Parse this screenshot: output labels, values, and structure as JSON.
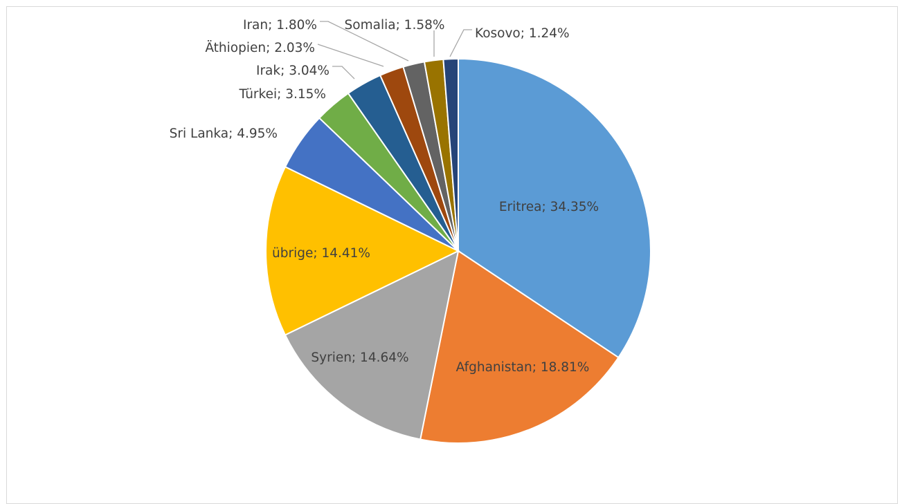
{
  "chart_data": {
    "type": "pie",
    "title": "",
    "slices": [
      {
        "name": "Eritrea",
        "value": 34.35,
        "label": "Eritrea; 34.35%",
        "color": "#5B9BD5"
      },
      {
        "name": "Afghanistan",
        "value": 18.81,
        "label": "Afghanistan; 18.81%",
        "color": "#ED7D31"
      },
      {
        "name": "Syrien",
        "value": 14.64,
        "label": "Syrien; 14.64%",
        "color": "#A5A5A5"
      },
      {
        "name": "übrige",
        "value": 14.41,
        "label": "übrige; 14.41%",
        "color": "#FFC000"
      },
      {
        "name": "Sri Lanka",
        "value": 4.95,
        "label": "Sri Lanka; 4.95%",
        "color": "#4472C4"
      },
      {
        "name": "Türkei",
        "value": 3.15,
        "label": "Türkei; 3.15%",
        "color": "#70AD47"
      },
      {
        "name": "Irak",
        "value": 3.04,
        "label": "Irak; 3.04%",
        "color": "#255E91"
      },
      {
        "name": "Äthiopien",
        "value": 2.03,
        "label": "Äthiopien; 2.03%",
        "color": "#9E480E"
      },
      {
        "name": "Iran",
        "value": 1.8,
        "label": "Iran; 1.80%",
        "color": "#636363"
      },
      {
        "name": "Somalia",
        "value": 1.58,
        "label": "Somalia; 1.58%",
        "color": "#997300"
      },
      {
        "name": "Kosovo",
        "value": 1.24,
        "label": "Kosovo; 1.24%",
        "color": "#264478"
      }
    ]
  }
}
